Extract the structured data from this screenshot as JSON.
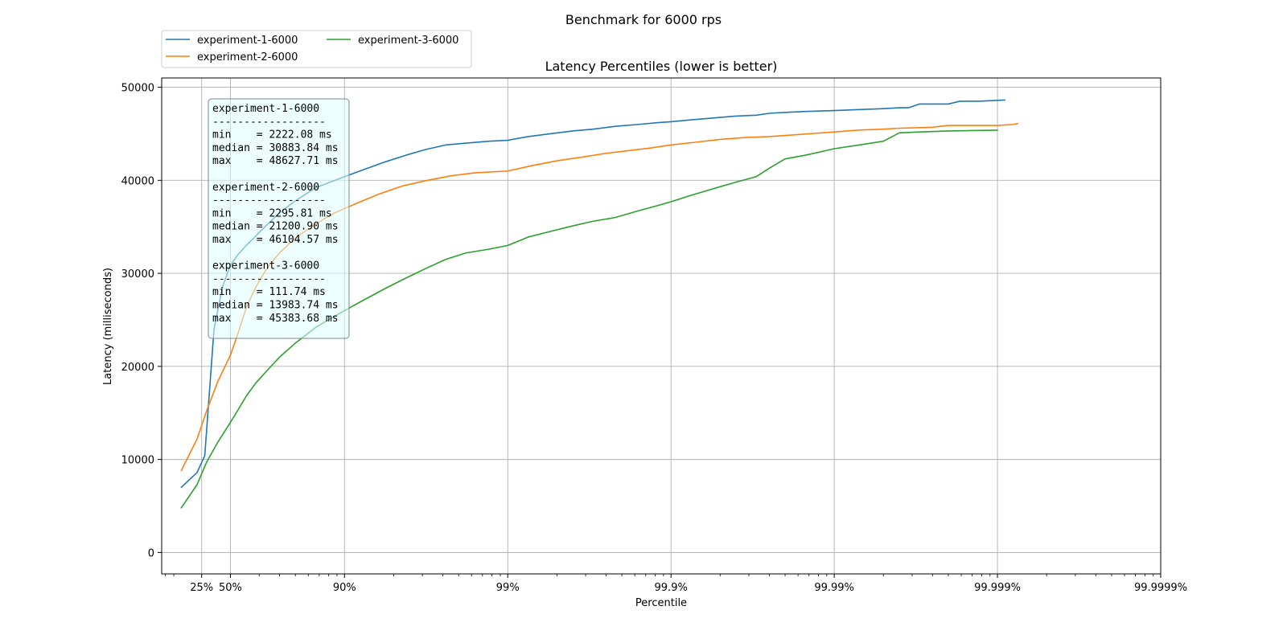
{
  "chart_data": {
    "type": "line",
    "suptitle": "Benchmark for 6000 rps",
    "title": "Latency Percentiles (lower is better)",
    "xlabel": "Percentile",
    "ylabel": "Latency (milliseconds)",
    "x_scale": "log of 1/(1 - percentile)",
    "x_range_percentile": [
      0,
      99.9999
    ],
    "x_ticks": [
      {
        "p": 25,
        "label": "25%"
      },
      {
        "p": 50,
        "label": "50%"
      },
      {
        "p": 90,
        "label": "90%"
      },
      {
        "p": 99,
        "label": "99%"
      },
      {
        "p": 99.9,
        "label": "99.9%"
      },
      {
        "p": 99.99,
        "label": "99.99%"
      },
      {
        "p": 99.999,
        "label": "99.999%"
      },
      {
        "p": 99.9999,
        "label": "99.9999%"
      }
    ],
    "ylim": [
      -2300,
      51000
    ],
    "y_ticks": [
      0,
      10000,
      20000,
      30000,
      40000,
      50000
    ],
    "grid": true,
    "legend_position": "top-left, above plot",
    "legend_columns": 2,
    "series": [
      {
        "name": "experiment-1-6000",
        "color": "#1f77b4",
        "points": [
          [
            0,
            7000
          ],
          [
            20,
            8600
          ],
          [
            28.2,
            10400
          ],
          [
            37,
            24000
          ],
          [
            44,
            28500
          ],
          [
            50,
            30880
          ],
          [
            55,
            32000
          ],
          [
            60,
            33000
          ],
          [
            65,
            34000
          ],
          [
            70,
            35200
          ],
          [
            75,
            36500
          ],
          [
            80,
            37800
          ],
          [
            85,
            39200
          ],
          [
            90,
            40400
          ],
          [
            92.5,
            41200
          ],
          [
            94.4,
            42000
          ],
          [
            95.8,
            42700
          ],
          [
            96.8,
            43300
          ],
          [
            97.6,
            43800
          ],
          [
            98.2,
            44000
          ],
          [
            98.7,
            44200
          ],
          [
            99,
            44300
          ],
          [
            99.25,
            44700
          ],
          [
            99.45,
            45000
          ],
          [
            99.6,
            45300
          ],
          [
            99.7,
            45500
          ],
          [
            99.78,
            45800
          ],
          [
            99.84,
            46000
          ],
          [
            99.88,
            46200
          ],
          [
            99.9,
            46300
          ],
          [
            99.925,
            46500
          ],
          [
            99.945,
            46700
          ],
          [
            99.96,
            46900
          ],
          [
            99.97,
            47000
          ],
          [
            99.975,
            47200
          ],
          [
            99.98,
            47300
          ],
          [
            99.985,
            47400
          ],
          [
            99.99,
            47500
          ],
          [
            99.993,
            47600
          ],
          [
            99.995,
            47700
          ],
          [
            99.996,
            47800
          ],
          [
            99.9965,
            47800
          ],
          [
            99.997,
            48200
          ],
          [
            99.998,
            48200
          ],
          [
            99.9983,
            48500
          ],
          [
            99.9987,
            48500
          ],
          [
            99.9991,
            48630
          ]
        ]
      },
      {
        "name": "experiment-2-6000",
        "color": "#ff7f0e",
        "points": [
          [
            0,
            8800
          ],
          [
            20,
            12200
          ],
          [
            30,
            15200
          ],
          [
            40,
            18300
          ],
          [
            50,
            21200
          ],
          [
            55,
            23500
          ],
          [
            60,
            26300
          ],
          [
            65,
            28500
          ],
          [
            70,
            30500
          ],
          [
            75,
            32200
          ],
          [
            80,
            33800
          ],
          [
            85,
            35300
          ],
          [
            88.5,
            36500
          ],
          [
            91.5,
            37500
          ],
          [
            93.8,
            38500
          ],
          [
            95.6,
            39400
          ],
          [
            96.9,
            40000
          ],
          [
            97.8,
            40500
          ],
          [
            98.4,
            40800
          ],
          [
            99,
            41000
          ],
          [
            99.3,
            41600
          ],
          [
            99.5,
            42100
          ],
          [
            99.65,
            42500
          ],
          [
            99.75,
            42900
          ],
          [
            99.82,
            43200
          ],
          [
            99.87,
            43500
          ],
          [
            99.9,
            43800
          ],
          [
            99.93,
            44100
          ],
          [
            99.95,
            44400
          ],
          [
            99.965,
            44600
          ],
          [
            99.975,
            44700
          ],
          [
            99.983,
            44900
          ],
          [
            99.99,
            45200
          ],
          [
            99.993,
            45400
          ],
          [
            99.995,
            45500
          ],
          [
            99.996,
            45600
          ],
          [
            99.9975,
            45700
          ],
          [
            99.998,
            45900
          ],
          [
            99.9985,
            45900
          ],
          [
            99.999,
            45900
          ],
          [
            99.9992,
            46000
          ],
          [
            99.99925,
            46100
          ]
        ]
      },
      {
        "name": "experiment-3-6000",
        "color": "#2ca02c",
        "points": [
          [
            0,
            4800
          ],
          [
            20,
            7300
          ],
          [
            30,
            9700
          ],
          [
            40,
            11800
          ],
          [
            50,
            13980
          ],
          [
            55,
            15300
          ],
          [
            60,
            16800
          ],
          [
            65,
            18200
          ],
          [
            70,
            19500
          ],
          [
            75,
            21000
          ],
          [
            80,
            22500
          ],
          [
            85,
            24200
          ],
          [
            90,
            26000
          ],
          [
            92.5,
            27200
          ],
          [
            94.4,
            28400
          ],
          [
            95.8,
            29500
          ],
          [
            96.8,
            30500
          ],
          [
            97.6,
            31500
          ],
          [
            98.2,
            32200
          ],
          [
            98.7,
            32600
          ],
          [
            99,
            33000
          ],
          [
            99.25,
            33900
          ],
          [
            99.45,
            34500
          ],
          [
            99.6,
            35100
          ],
          [
            99.7,
            35600
          ],
          [
            99.78,
            36000
          ],
          [
            99.84,
            36700
          ],
          [
            99.88,
            37300
          ],
          [
            99.9,
            37700
          ],
          [
            99.925,
            38400
          ],
          [
            99.945,
            39100
          ],
          [
            99.96,
            39800
          ],
          [
            99.97,
            40400
          ],
          [
            99.975,
            41300
          ],
          [
            99.98,
            42300
          ],
          [
            99.985,
            42700
          ],
          [
            99.99,
            43400
          ],
          [
            99.993,
            43800
          ],
          [
            99.995,
            44200
          ],
          [
            99.996,
            45100
          ],
          [
            99.997,
            45200
          ],
          [
            99.998,
            45300
          ],
          [
            99.999,
            45390
          ]
        ]
      }
    ],
    "stats_box": {
      "lines": [
        "experiment-1-6000",
        "------------------",
        "min    = 2222.08 ms",
        "median = 30883.84 ms",
        "max    = 48627.71 ms",
        "",
        "experiment-2-6000",
        "------------------",
        "min    = 2295.81 ms",
        "median = 21200.90 ms",
        "max    = 46104.57 ms",
        "",
        "experiment-3-6000",
        "------------------",
        "min    = 111.74 ms",
        "median = 13983.74 ms",
        "max    = 45383.68 ms"
      ],
      "background": "#e0ffff",
      "border": "#7a8a8a"
    }
  }
}
